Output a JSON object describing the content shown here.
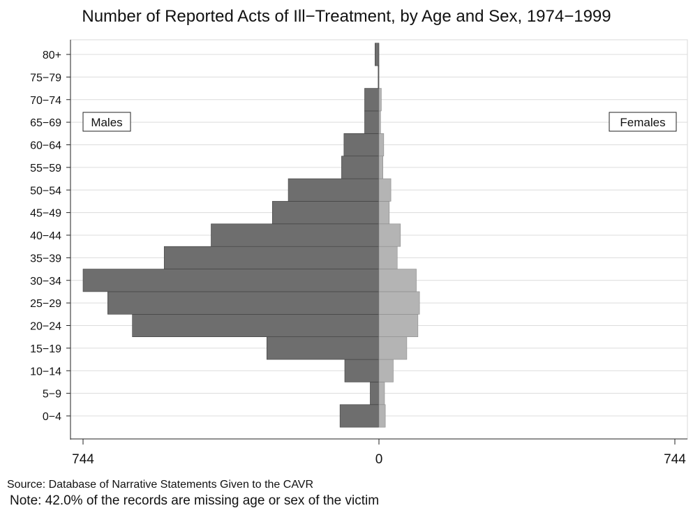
{
  "chart_data": {
    "type": "bar",
    "orientation": "horizontal-population-pyramid",
    "title": "Number of Reported Acts of Ill−Treatment, by Age and Sex, 1974−1999",
    "categories": [
      "0−4",
      "5−9",
      "10−14",
      "15−19",
      "20−24",
      "25−29",
      "30−34",
      "35−39",
      "40−44",
      "45−49",
      "50−54",
      "55−59",
      "60−64",
      "65−69",
      "70−74",
      "75−79",
      "80+"
    ],
    "series": [
      {
        "name": "Males",
        "side": "left",
        "color": "#6e6e6e",
        "values": [
          98,
          22,
          86,
          282,
          620,
          682,
          744,
          540,
          422,
          268,
          228,
          94,
          88,
          36,
          36,
          2,
          10
        ]
      },
      {
        "name": "Females",
        "side": "right",
        "color": "#b4b4b4",
        "values": [
          16,
          14,
          36,
          70,
          98,
          102,
          94,
          46,
          54,
          26,
          30,
          10,
          12,
          4,
          6,
          0,
          0
        ]
      }
    ],
    "xlim": [
      -744,
      744
    ],
    "xticks": [
      {
        "value": -744,
        "label": "744"
      },
      {
        "value": 0,
        "label": "0"
      },
      {
        "value": 744,
        "label": "744"
      }
    ],
    "legend": {
      "left_label": "Males",
      "right_label": "Females"
    },
    "grid": true,
    "source": "Source: Database of Narrative Statements Given to the CAVR",
    "note": "Note: 42.0% of the records are missing age or sex of the victim"
  }
}
